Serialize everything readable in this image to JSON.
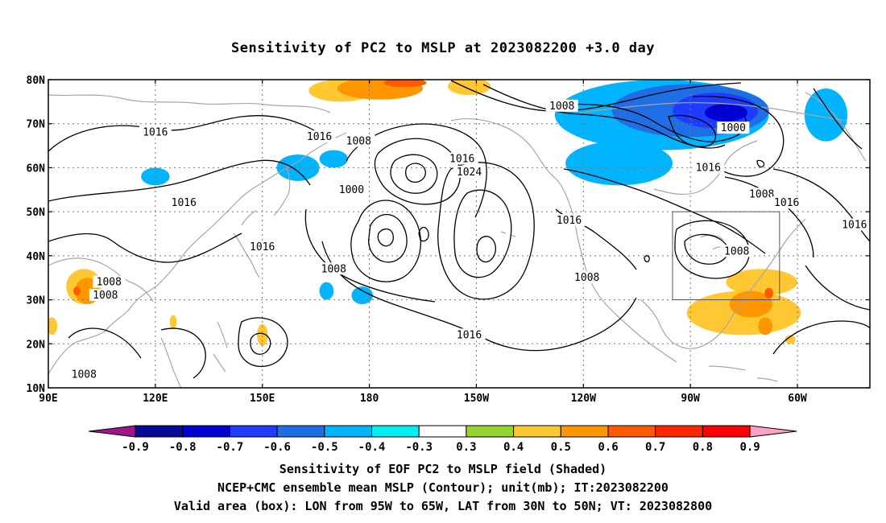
{
  "chart_data": {
    "type": "heatmap",
    "title": "Sensitivity of PC2 to MSLP at 2023082200 +3.0 day",
    "projection": "cylindrical",
    "lon_range": [
      90,
      310
    ],
    "lat_range": [
      10,
      80
    ],
    "x_ticks": [
      {
        "lon": 90,
        "label": "90E"
      },
      {
        "lon": 120,
        "label": "120E"
      },
      {
        "lon": 150,
        "label": "150E"
      },
      {
        "lon": 180,
        "label": "180"
      },
      {
        "lon": 210,
        "label": "150W"
      },
      {
        "lon": 240,
        "label": "120W"
      },
      {
        "lon": 270,
        "label": "90W"
      },
      {
        "lon": 300,
        "label": "60W"
      }
    ],
    "y_ticks": [
      {
        "lat": 10,
        "label": "10N"
      },
      {
        "lat": 20,
        "label": "20N"
      },
      {
        "lat": 30,
        "label": "30N"
      },
      {
        "lat": 40,
        "label": "40N"
      },
      {
        "lat": 50,
        "label": "50N"
      },
      {
        "lat": 60,
        "label": "60N"
      },
      {
        "lat": 70,
        "label": "70N"
      },
      {
        "lat": 80,
        "label": "80N"
      }
    ],
    "grid": true,
    "colorbar": {
      "bounds": [
        "-0.9",
        "-0.8",
        "-0.7",
        "-0.6",
        "-0.5",
        "-0.4",
        "-0.3",
        "0.3",
        "0.4",
        "0.5",
        "0.6",
        "0.7",
        "0.8",
        "0.9"
      ],
      "colors": [
        "#a0148c",
        "#0a0a96",
        "#0000d2",
        "#1e3cff",
        "#1e6ee6",
        "#00b4ff",
        "#00f0f0",
        "#ffffff",
        "#96d232",
        "#ffc832",
        "#ff9600",
        "#ff5a00",
        "#ff2800",
        "#ff0000",
        "#ffa0c8"
      ]
    },
    "valid_box": {
      "lon_min": 265,
      "lon_max": 295,
      "lat_min": 30,
      "lat_max": 50
    },
    "contour_labels": [
      {
        "text": "1016",
        "lon": 120,
        "lat": 68
      },
      {
        "text": "1016",
        "lon": 128,
        "lat": 52
      },
      {
        "text": "1016",
        "lon": 166,
        "lat": 67
      },
      {
        "text": "1008",
        "lon": 177,
        "lat": 66
      },
      {
        "text": "1000",
        "lon": 175,
        "lat": 55
      },
      {
        "text": "1016",
        "lon": 206,
        "lat": 62
      },
      {
        "text": "1024",
        "lon": 208,
        "lat": 59
      },
      {
        "text": "1008",
        "lon": 234,
        "lat": 74
      },
      {
        "text": "1000",
        "lon": 282,
        "lat": 69
      },
      {
        "text": "1016",
        "lon": 275,
        "lat": 60
      },
      {
        "text": "1008",
        "lon": 290,
        "lat": 54
      },
      {
        "text": "1016",
        "lon": 297,
        "lat": 52
      },
      {
        "text": "1016",
        "lon": 236,
        "lat": 48
      },
      {
        "text": "1016",
        "lon": 150,
        "lat": 42
      },
      {
        "text": "1008",
        "lon": 170,
        "lat": 37
      },
      {
        "text": "1008",
        "lon": 107,
        "lat": 34
      },
      {
        "text": "1008",
        "lon": 106,
        "lat": 31
      },
      {
        "text": "1008",
        "lon": 241,
        "lat": 35
      },
      {
        "text": "1008",
        "lon": 283,
        "lat": 41
      },
      {
        "text": "1016",
        "lon": 316,
        "lat": 47
      },
      {
        "text": "1016",
        "lon": 208,
        "lat": 22
      },
      {
        "text": "1008",
        "lon": 100,
        "lat": 13
      }
    ],
    "shaded_regions": [
      {
        "value": 0.4,
        "lon": 100,
        "lat": 33,
        "rlon": 5,
        "rlat": 4
      },
      {
        "value": 0.5,
        "lon": 101,
        "lat": 32,
        "rlon": 3.5,
        "rlat": 3
      },
      {
        "value": 0.6,
        "lon": 98,
        "lat": 32,
        "rlon": 1,
        "rlat": 1
      },
      {
        "value": 0.4,
        "lon": 91,
        "lat": 24,
        "rlon": 1.5,
        "rlat": 2
      },
      {
        "value": 0.4,
        "lon": 150,
        "lat": 22,
        "rlon": 1.5,
        "rlat": 2.5
      },
      {
        "value": 0.4,
        "lon": 125,
        "lat": 25,
        "rlon": 1,
        "rlat": 1.5
      },
      {
        "value": 0.4,
        "lon": 172,
        "lat": 77.5,
        "rlon": 9,
        "rlat": 2.5
      },
      {
        "value": 0.5,
        "lon": 183,
        "lat": 78,
        "rlon": 12,
        "rlat": 2.5
      },
      {
        "value": 0.6,
        "lon": 190,
        "lat": 79.3,
        "rlon": 6,
        "rlat": 1
      },
      {
        "value": 0.4,
        "lon": 208,
        "lat": 78.5,
        "rlon": 6,
        "rlat": 2
      },
      {
        "value": -0.4,
        "lon": 262,
        "lat": 72,
        "rlon": 30,
        "rlat": 8
      },
      {
        "value": -0.4,
        "lon": 250,
        "lat": 61,
        "rlon": 15,
        "rlat": 5
      },
      {
        "value": -0.5,
        "lon": 270,
        "lat": 73,
        "rlon": 22,
        "rlat": 6
      },
      {
        "value": -0.6,
        "lon": 277,
        "lat": 73,
        "rlon": 12,
        "rlat": 4
      },
      {
        "value": -0.7,
        "lon": 280,
        "lat": 72.5,
        "rlon": 6,
        "rlat": 2
      },
      {
        "value": -0.4,
        "lon": 308,
        "lat": 72,
        "rlon": 6,
        "rlat": 6
      },
      {
        "value": -0.4,
        "lon": 120,
        "lat": 58,
        "rlon": 4,
        "rlat": 2
      },
      {
        "value": -0.4,
        "lon": 160,
        "lat": 60,
        "rlon": 6,
        "rlat": 3
      },
      {
        "value": -0.4,
        "lon": 170,
        "lat": 62,
        "rlon": 4,
        "rlat": 2
      },
      {
        "value": -0.4,
        "lon": 178,
        "lat": 31,
        "rlon": 3,
        "rlat": 2
      },
      {
        "value": -0.4,
        "lon": 168,
        "lat": 32,
        "rlon": 2,
        "rlat": 2
      },
      {
        "value": 0.4,
        "lon": 285,
        "lat": 27,
        "rlon": 16,
        "rlat": 5
      },
      {
        "value": 0.4,
        "lon": 290,
        "lat": 34,
        "rlon": 10,
        "rlat": 3
      },
      {
        "value": 0.5,
        "lon": 287,
        "lat": 29,
        "rlon": 6,
        "rlat": 3
      },
      {
        "value": 0.5,
        "lon": 291,
        "lat": 24,
        "rlon": 2,
        "rlat": 2
      },
      {
        "value": 0.6,
        "lon": 292,
        "lat": 31.5,
        "rlon": 1.2,
        "rlat": 1.2
      },
      {
        "value": 0.4,
        "lon": 298,
        "lat": 21,
        "rlon": 1.5,
        "rlat": 1
      }
    ]
  },
  "captions": {
    "line1": "Sensitivity of EOF PC2 to MSLP field (Shaded)",
    "line2": "NCEP+CMC ensemble mean MSLP (Contour); unit(mb); IT:2023082200",
    "line3": "Valid area (box): LON from 95W to 65W, LAT from 30N to 50N; VT: 2023082800"
  }
}
